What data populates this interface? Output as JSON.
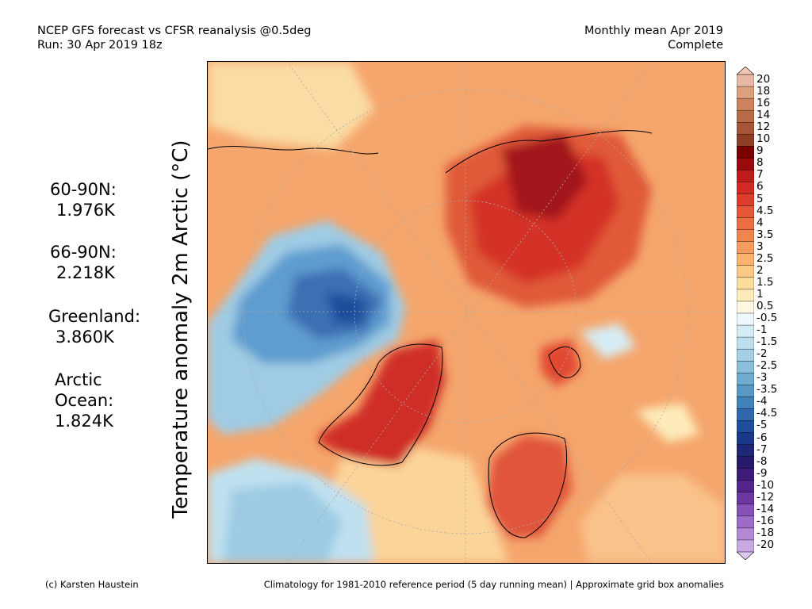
{
  "header": {
    "left_line1": "NCEP GFS forecast vs CFSR reanalysis @0.5deg",
    "left_line2": "Run: 30 Apr 2019 18z",
    "right_line1": "Monthly mean Apr 2019",
    "right_line2": "Complete"
  },
  "ylabel": "Temperature anomaly 2m Arctic (°C)",
  "stats": [
    {
      "label": "60-90N:",
      "value": "1.976K"
    },
    {
      "label": "66-90N:",
      "value": "2.218K"
    },
    {
      "label": "Greenland:",
      "value": "3.860K"
    },
    {
      "label_line1": "Arctic",
      "label_line2": "Ocean:",
      "value": "1.824K"
    }
  ],
  "colorbar": {
    "labels": [
      "20",
      "18",
      "16",
      "14",
      "12",
      "10",
      "9",
      "8",
      "7",
      "6",
      "5",
      "4.5",
      "4",
      "3.5",
      "3",
      "2.5",
      "2",
      "1.5",
      "1",
      "0.5",
      "-0.5",
      "-1",
      "-1.5",
      "-2",
      "-2.5",
      "-3",
      "-3.5",
      "-4",
      "-4.5",
      "-5",
      "-6",
      "-7",
      "-8",
      "-9",
      "-10",
      "-12",
      "-14",
      "-16",
      "-18",
      "-20"
    ],
    "colors": [
      "#e8b9a4",
      "#dca07f",
      "#cd845e",
      "#b96a47",
      "#a65637",
      "#8f3f27",
      "#7a0000",
      "#9a0a0a",
      "#bf1c1c",
      "#d22a24",
      "#de3c2b",
      "#e55637",
      "#eb6e42",
      "#f0864f",
      "#f49c5d",
      "#f8b36d",
      "#fbc984",
      "#fcdc9c",
      "#fdecba",
      "#fef8e3",
      "#eef7fb",
      "#d6ecf4",
      "#bddfec",
      "#a3d0e4",
      "#89bfda",
      "#70acd0",
      "#5898c6",
      "#4282bb",
      "#3068ad",
      "#1f4e9c",
      "#1a3888",
      "#1d2877",
      "#28196a",
      "#3f1b7a",
      "#55258d",
      "#6d37a2",
      "#8651b6",
      "#9d6cc7",
      "#b389d6",
      "#c9a8e4"
    ],
    "top_arrow_color": "#f0c8b4",
    "bottom_arrow_color": "#dcc8f0"
  },
  "footer": {
    "left": "(c) Karsten Haustein",
    "right": "Climatology for 1981-2010 reference period (5 day running mean) | Approximate grid box anomalies"
  },
  "map": {
    "description_colors": {
      "warm_base": "#f5a66c",
      "hot": "#c8201e",
      "cold": "#4d8cc4"
    }
  }
}
